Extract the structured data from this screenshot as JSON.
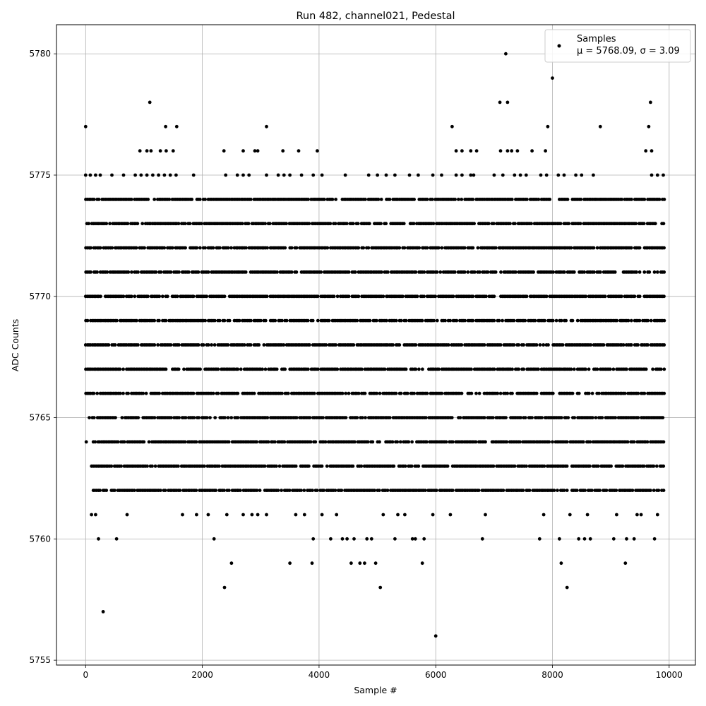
{
  "chart_data": {
    "type": "scatter",
    "title": "Run 482, channel021, Pedestal",
    "xlabel": "Sample #",
    "ylabel": "ADC Counts",
    "xlim": [
      -500,
      10450
    ],
    "ylim": [
      5754.8,
      5781.2
    ],
    "xticks": [
      0,
      2000,
      4000,
      6000,
      8000,
      10000
    ],
    "yticks": [
      5755,
      5760,
      5765,
      5770,
      5775,
      5780
    ],
    "grid": true,
    "legend_position": "top-right",
    "marker_color": "#000000",
    "series": [
      {
        "name": "Samples",
        "stats_label": "μ = 5768.09, σ = 3.09",
        "level_ranges": [
          {
            "y": 5772,
            "x": [
              [
                0,
                9925
              ]
            ]
          },
          {
            "y": 5771,
            "x": [
              [
                0,
                9925
              ]
            ]
          },
          {
            "y": 5770,
            "x": [
              [
                0,
                9925
              ]
            ]
          },
          {
            "y": 5769,
            "x": [
              [
                0,
                9925
              ]
            ]
          },
          {
            "y": 5768,
            "x": [
              [
                0,
                9925
              ]
            ]
          },
          {
            "y": 5767,
            "x": [
              [
                0,
                9925
              ]
            ]
          },
          {
            "y": 5766,
            "x": [
              [
                0,
                9925
              ]
            ]
          },
          {
            "y": 5765,
            "x": [
              [
                60,
                9925
              ]
            ]
          },
          {
            "y": 5764,
            "x": [
              [
                130,
                9925
              ]
            ]
          },
          {
            "y": 5773,
            "x": [
              [
                20,
                9925
              ]
            ]
          },
          {
            "y": 5763,
            "x": [
              [
                100,
                9925
              ]
            ]
          },
          {
            "y": 5774,
            "x": [
              [
                0,
                9925
              ]
            ]
          },
          {
            "y": 5762,
            "x": [
              [
                130,
                9925
              ]
            ]
          }
        ],
        "points": [
          [
            0,
            5777
          ],
          [
            300,
            5757
          ],
          [
            1100,
            5778
          ],
          [
            1370,
            5777
          ],
          [
            1560,
            5777
          ],
          [
            3100,
            5777
          ],
          [
            6000,
            5756
          ],
          [
            6280,
            5777
          ],
          [
            7100,
            5778
          ],
          [
            7200,
            5780
          ],
          [
            7230,
            5778
          ],
          [
            7920,
            5777
          ],
          [
            8000,
            5779
          ],
          [
            8820,
            5777
          ],
          [
            9650,
            5777
          ],
          [
            9680,
            5778
          ],
          [
            930,
            5776
          ],
          [
            1050,
            5776
          ],
          [
            1120,
            5776
          ],
          [
            1280,
            5776
          ],
          [
            1380,
            5776
          ],
          [
            1500,
            5776
          ],
          [
            2370,
            5776
          ],
          [
            2700,
            5776
          ],
          [
            2900,
            5776
          ],
          [
            2950,
            5776
          ],
          [
            3380,
            5776
          ],
          [
            3650,
            5776
          ],
          [
            3970,
            5776
          ],
          [
            6350,
            5776
          ],
          [
            6450,
            5776
          ],
          [
            6600,
            5776
          ],
          [
            6700,
            5776
          ],
          [
            7110,
            5776
          ],
          [
            7230,
            5776
          ],
          [
            7300,
            5776
          ],
          [
            7400,
            5776
          ],
          [
            7650,
            5776
          ],
          [
            7880,
            5776
          ],
          [
            9600,
            5776
          ],
          [
            9700,
            5776
          ],
          [
            0,
            5775
          ],
          [
            80,
            5775
          ],
          [
            170,
            5775
          ],
          [
            250,
            5775
          ],
          [
            450,
            5775
          ],
          [
            650,
            5775
          ],
          [
            850,
            5775
          ],
          [
            950,
            5775
          ],
          [
            1050,
            5775
          ],
          [
            1150,
            5775
          ],
          [
            1250,
            5775
          ],
          [
            1350,
            5775
          ],
          [
            1450,
            5775
          ],
          [
            1550,
            5775
          ],
          [
            1850,
            5775
          ],
          [
            2400,
            5775
          ],
          [
            2600,
            5775
          ],
          [
            2700,
            5775
          ],
          [
            2800,
            5775
          ],
          [
            3100,
            5775
          ],
          [
            3300,
            5775
          ],
          [
            3400,
            5775
          ],
          [
            3500,
            5775
          ],
          [
            3700,
            5775
          ],
          [
            3900,
            5775
          ],
          [
            4050,
            5775
          ],
          [
            4450,
            5775
          ],
          [
            4850,
            5775
          ],
          [
            5000,
            5775
          ],
          [
            5150,
            5775
          ],
          [
            5300,
            5775
          ],
          [
            5550,
            5775
          ],
          [
            5700,
            5775
          ],
          [
            5950,
            5775
          ],
          [
            6100,
            5775
          ],
          [
            6350,
            5775
          ],
          [
            6450,
            5775
          ],
          [
            6600,
            5775
          ],
          [
            6650,
            5775
          ],
          [
            7000,
            5775
          ],
          [
            7150,
            5775
          ],
          [
            7350,
            5775
          ],
          [
            7450,
            5775
          ],
          [
            7550,
            5775
          ],
          [
            7800,
            5775
          ],
          [
            7900,
            5775
          ],
          [
            8100,
            5775
          ],
          [
            8200,
            5775
          ],
          [
            8400,
            5775
          ],
          [
            8500,
            5775
          ],
          [
            8700,
            5775
          ],
          [
            9700,
            5775
          ],
          [
            9800,
            5775
          ],
          [
            9900,
            5775
          ],
          [
            10,
            5764
          ],
          [
            220,
            5760
          ],
          [
            530,
            5760
          ],
          [
            710,
            5761
          ],
          [
            1660,
            5761
          ],
          [
            1900,
            5761
          ],
          [
            2100,
            5761
          ],
          [
            2200,
            5760
          ],
          [
            2380,
            5758
          ],
          [
            2420,
            5761
          ],
          [
            2500,
            5759
          ],
          [
            2600,
            5762
          ],
          [
            2700,
            5761
          ],
          [
            2850,
            5761
          ],
          [
            2950,
            5761
          ],
          [
            3100,
            5761
          ],
          [
            3500,
            5759
          ],
          [
            3600,
            5761
          ],
          [
            3750,
            5761
          ],
          [
            3880,
            5759
          ],
          [
            3900,
            5760
          ],
          [
            4050,
            5761
          ],
          [
            4200,
            5760
          ],
          [
            4300,
            5761
          ],
          [
            4400,
            5760
          ],
          [
            4480,
            5760
          ],
          [
            4550,
            5759
          ],
          [
            4600,
            5760
          ],
          [
            4700,
            5759
          ],
          [
            4780,
            5759
          ],
          [
            4820,
            5760
          ],
          [
            4900,
            5760
          ],
          [
            4970,
            5759
          ],
          [
            5050,
            5758
          ],
          [
            5100,
            5761
          ],
          [
            5300,
            5760
          ],
          [
            5350,
            5761
          ],
          [
            5470,
            5761
          ],
          [
            5600,
            5760
          ],
          [
            5650,
            5760
          ],
          [
            5770,
            5759
          ],
          [
            5800,
            5760
          ],
          [
            5950,
            5761
          ],
          [
            6250,
            5761
          ],
          [
            6800,
            5760
          ],
          [
            6850,
            5761
          ],
          [
            7780,
            5760
          ],
          [
            7850,
            5761
          ],
          [
            8120,
            5760
          ],
          [
            8150,
            5759
          ],
          [
            8250,
            5758
          ],
          [
            8300,
            5761
          ],
          [
            8450,
            5760
          ],
          [
            8550,
            5760
          ],
          [
            8650,
            5760
          ],
          [
            8600,
            5761
          ],
          [
            9050,
            5760
          ],
          [
            9100,
            5761
          ],
          [
            9250,
            5759
          ],
          [
            9270,
            5760
          ],
          [
            9400,
            5760
          ],
          [
            9450,
            5761
          ],
          [
            9520,
            5761
          ],
          [
            9750,
            5760
          ],
          [
            9800,
            5761
          ],
          [
            100,
            5761
          ],
          [
            170,
            5761
          ]
        ]
      }
    ]
  }
}
